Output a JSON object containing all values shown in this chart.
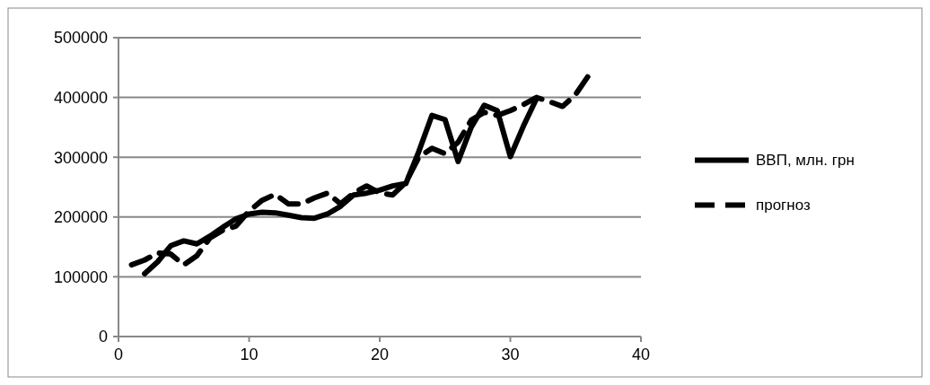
{
  "chart_data": {
    "type": "line",
    "xlim": [
      0,
      40
    ],
    "xticks": [
      0,
      10,
      20,
      30,
      40
    ],
    "ylim": [
      0,
      500000
    ],
    "yticks": [
      0,
      100000,
      200000,
      300000,
      400000,
      500000
    ],
    "grid": "y",
    "legend": "right",
    "series": [
      {
        "name": "ВВП, млн. грн",
        "color": "#000000",
        "line_style": "solid",
        "x": [
          2,
          3,
          4,
          5,
          6,
          7,
          8,
          9,
          10,
          11,
          12,
          13,
          14,
          15,
          16,
          17,
          18,
          19,
          20,
          21,
          22,
          23,
          24,
          25,
          26,
          27,
          28,
          29,
          30,
          31,
          32
        ],
        "values": [
          105000,
          125000,
          152000,
          160000,
          155000,
          168000,
          183000,
          197000,
          205000,
          208000,
          207000,
          203000,
          199000,
          198000,
          205000,
          218000,
          237000,
          240000,
          245000,
          252000,
          256000,
          310000,
          370000,
          363000,
          293000,
          350000,
          387000,
          378000,
          301000,
          352000,
          398000
        ]
      },
      {
        "name": "прогноз",
        "color": "#000000",
        "line_style": "dashed",
        "x": [
          1,
          2,
          3,
          4,
          5,
          6,
          7,
          8,
          9,
          10,
          11,
          12,
          13,
          14,
          15,
          16,
          17,
          18,
          19,
          20,
          21,
          22,
          23,
          24,
          25,
          26,
          27,
          28,
          29,
          30,
          31,
          32,
          33,
          34,
          35,
          36
        ],
        "values": [
          120000,
          128000,
          140000,
          138000,
          120000,
          135000,
          165000,
          178000,
          185000,
          210000,
          228000,
          238000,
          222000,
          222000,
          232000,
          240000,
          222000,
          240000,
          252000,
          240000,
          237000,
          258000,
          300000,
          315000,
          306000,
          325000,
          362000,
          375000,
          370000,
          378000,
          388000,
          400000,
          393000,
          385000,
          405000,
          437000
        ]
      }
    ]
  }
}
